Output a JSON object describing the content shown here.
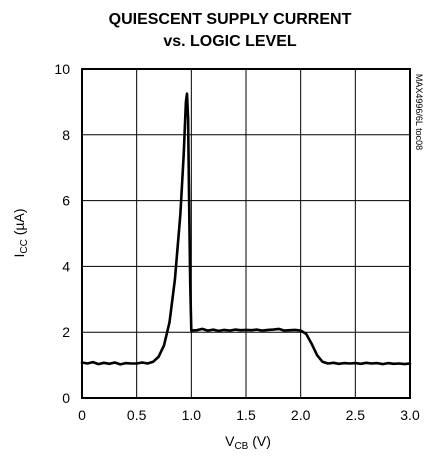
{
  "chart_data": {
    "type": "line",
    "title_line1": "QUIESCENT SUPPLY CURRENT",
    "title_line2": "vs. LOGIC LEVEL",
    "side_label": "MAX4996/6L toc08",
    "xlabel_main": "V",
    "xlabel_sub": "CB",
    "xlabel_unit": " (V)",
    "ylabel_main": "I",
    "ylabel_sub": "CC",
    "ylabel_unit": " (µA)",
    "xlim": [
      0,
      3.0
    ],
    "ylim": [
      0,
      10
    ],
    "xticks": [
      "0",
      "0.5",
      "1.0",
      "1.5",
      "2.0",
      "2.5",
      "3.0"
    ],
    "yticks": [
      "0",
      "2",
      "4",
      "6",
      "8",
      "10"
    ],
    "grid": true,
    "line_color": "#000000",
    "series": [
      {
        "points": [
          [
            0,
            1.08
          ],
          [
            0.05,
            1.05
          ],
          [
            0.1,
            1.09
          ],
          [
            0.15,
            1.03
          ],
          [
            0.2,
            1.07
          ],
          [
            0.25,
            1.04
          ],
          [
            0.3,
            1.08
          ],
          [
            0.35,
            1.02
          ],
          [
            0.4,
            1.06
          ],
          [
            0.45,
            1.05
          ],
          [
            0.5,
            1.05
          ],
          [
            0.55,
            1.08
          ],
          [
            0.6,
            1.05
          ],
          [
            0.65,
            1.1
          ],
          [
            0.7,
            1.25
          ],
          [
            0.75,
            1.6
          ],
          [
            0.8,
            2.3
          ],
          [
            0.85,
            3.6
          ],
          [
            0.9,
            5.6
          ],
          [
            0.93,
            7.4
          ],
          [
            0.95,
            9.0
          ],
          [
            0.96,
            9.25
          ],
          [
            0.97,
            8.5
          ],
          [
            0.98,
            6.0
          ],
          [
            0.99,
            3.5
          ],
          [
            1.0,
            2.05
          ],
          [
            1.05,
            2.06
          ],
          [
            1.1,
            2.1
          ],
          [
            1.15,
            2.05
          ],
          [
            1.2,
            2.08
          ],
          [
            1.25,
            2.04
          ],
          [
            1.3,
            2.07
          ],
          [
            1.35,
            2.05
          ],
          [
            1.4,
            2.08
          ],
          [
            1.45,
            2.06
          ],
          [
            1.5,
            2.07
          ],
          [
            1.55,
            2.06
          ],
          [
            1.6,
            2.08
          ],
          [
            1.65,
            2.05
          ],
          [
            1.7,
            2.07
          ],
          [
            1.75,
            2.08
          ],
          [
            1.8,
            2.1
          ],
          [
            1.85,
            2.05
          ],
          [
            1.9,
            2.06
          ],
          [
            1.95,
            2.07
          ],
          [
            2.0,
            2.05
          ],
          [
            2.05,
            1.95
          ],
          [
            2.1,
            1.65
          ],
          [
            2.15,
            1.3
          ],
          [
            2.2,
            1.1
          ],
          [
            2.25,
            1.05
          ],
          [
            2.3,
            1.07
          ],
          [
            2.35,
            1.04
          ],
          [
            2.4,
            1.06
          ],
          [
            2.45,
            1.05
          ],
          [
            2.5,
            1.06
          ],
          [
            2.55,
            1.04
          ],
          [
            2.6,
            1.07
          ],
          [
            2.65,
            1.05
          ],
          [
            2.7,
            1.06
          ],
          [
            2.75,
            1.03
          ],
          [
            2.8,
            1.06
          ],
          [
            2.85,
            1.04
          ],
          [
            2.9,
            1.05
          ],
          [
            2.95,
            1.03
          ],
          [
            3.0,
            1.05
          ]
        ]
      }
    ]
  }
}
